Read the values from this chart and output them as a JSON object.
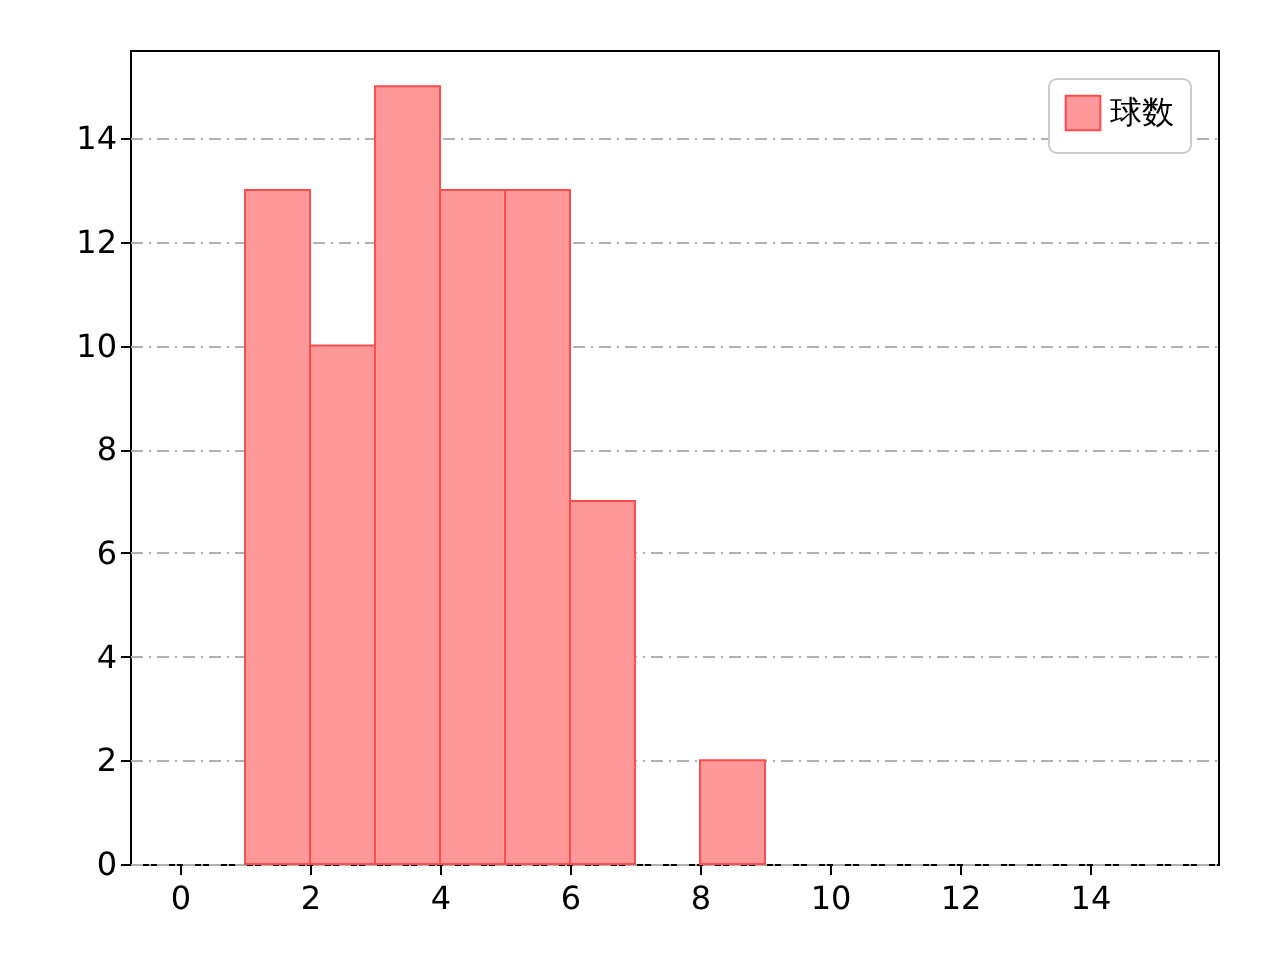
{
  "chart_data": {
    "type": "histogram",
    "bins": [
      1,
      2,
      3,
      4,
      5,
      6,
      7,
      8,
      9
    ],
    "series": [
      {
        "name": "球数",
        "color": "#ff9999",
        "values": [
          13,
          10,
          15,
          13,
          13,
          7,
          0,
          2
        ]
      }
    ],
    "xlim": [
      -0.77,
      15.97
    ],
    "xticks": [
      0,
      2,
      4,
      6,
      8,
      10,
      12,
      14
    ],
    "ylim": [
      0,
      15.7
    ],
    "yticks": [
      0,
      2,
      4,
      6,
      8,
      10,
      12,
      14
    ],
    "grid": "y",
    "legend": "top right"
  }
}
